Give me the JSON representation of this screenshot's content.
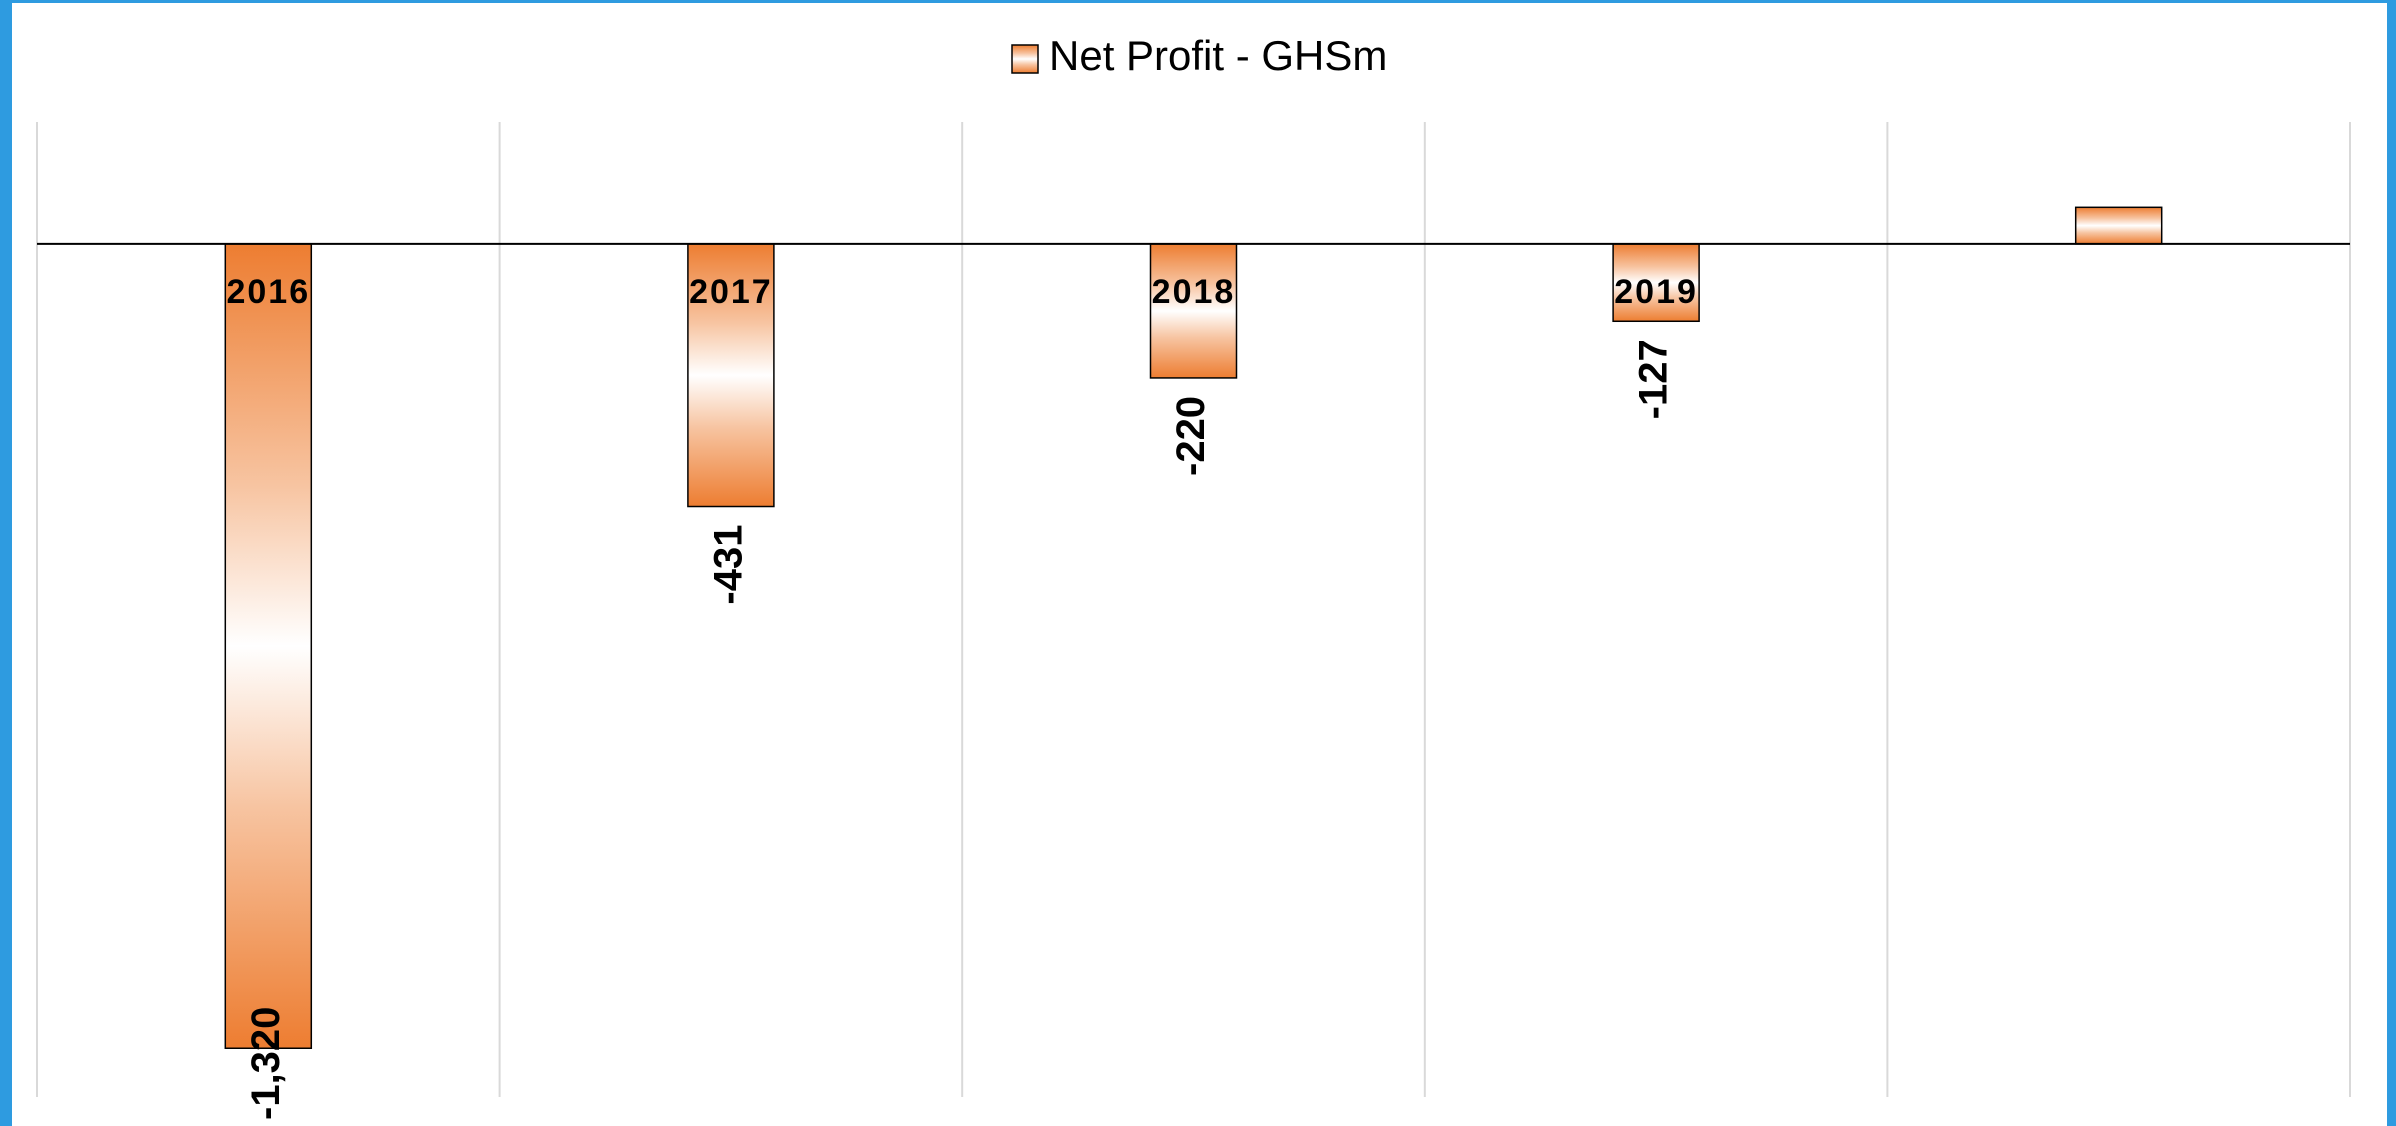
{
  "chart_data": {
    "type": "bar",
    "series": [
      {
        "name": "Net Profit - GHSm",
        "color": "#ED7D31",
        "values": [
          -1320,
          -431,
          -220,
          -127,
          60
        ],
        "value_labels": [
          "-1,320",
          "-431",
          "-220",
          "-127",
          null
        ]
      }
    ],
    "categories": [
      "2016",
      "2017",
      "2018",
      "2019",
      null
    ],
    "ylim": [
      -1400,
      200
    ],
    "legend": "top"
  }
}
